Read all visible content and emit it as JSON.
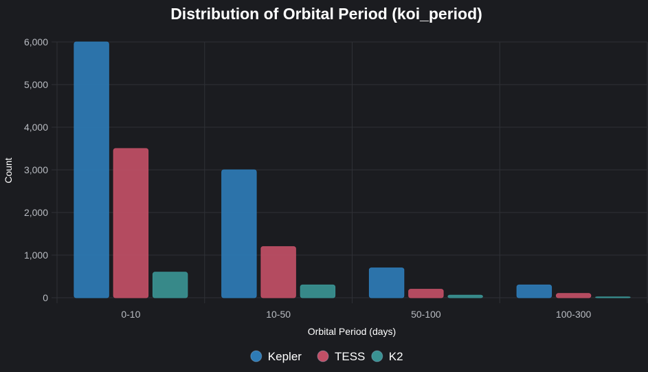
{
  "chart_data": {
    "type": "bar",
    "title": "Distribution of Orbital Period (koi_period)",
    "xlabel": "Orbital Period (days)",
    "ylabel": "Count",
    "categories": [
      "0-10",
      "10-50",
      "50-100",
      "100-300"
    ],
    "ylim": [
      0,
      6000
    ],
    "yticks": [
      0,
      1000,
      2000,
      3000,
      4000,
      5000,
      6000
    ],
    "ytick_labels": [
      "0",
      "1,000",
      "2,000",
      "3,000",
      "4,000",
      "5,000",
      "6,000"
    ],
    "grid": true,
    "legend_position": "bottom-center",
    "series": [
      {
        "name": "Kepler",
        "values": [
          6000,
          3000,
          700,
          300
        ],
        "color": "#2e7bb6"
      },
      {
        "name": "TESS",
        "values": [
          3500,
          1200,
          200,
          100
        ],
        "color": "#c14f66"
      },
      {
        "name": "K2",
        "values": [
          600,
          300,
          60,
          20
        ],
        "color": "#3a9293"
      }
    ]
  }
}
